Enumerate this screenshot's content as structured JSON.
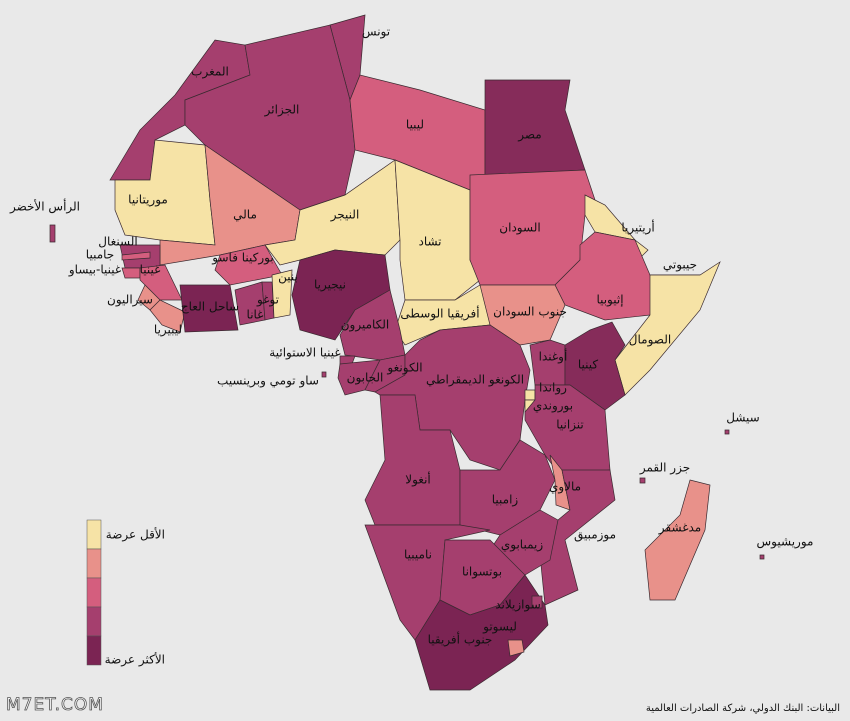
{
  "title": null,
  "countries": [
    {
      "name": "تونس",
      "color": "#a53f6e"
    },
    {
      "name": "المغرب",
      "color": "#a53f6e"
    },
    {
      "name": "الجزائر",
      "color": "#a53f6e"
    },
    {
      "name": "ليبيا",
      "color": "#d45e7e"
    },
    {
      "name": "مصر",
      "color": "#862c5a"
    },
    {
      "name": "موريتانيا",
      "color": "#f6e3a6"
    },
    {
      "name": "مالي",
      "color": "#e8918a"
    },
    {
      "name": "النيجر",
      "color": "#f6e3a6"
    },
    {
      "name": "تشاد",
      "color": "#f6e3a6"
    },
    {
      "name": "السودان",
      "color": "#d45e7e"
    },
    {
      "name": "أريتيريا",
      "color": "#f6e3a6"
    },
    {
      "name": "جيبوتي",
      "color": "#f6e3a6"
    },
    {
      "name": "إثيوبيا",
      "color": "#d45e7e"
    },
    {
      "name": "الصومال",
      "color": "#f6e3a6"
    },
    {
      "name": "جنوب السودان",
      "color": "#e8918a"
    },
    {
      "name": "أفريقيا الوسطى",
      "color": "#f6e3a6"
    },
    {
      "name": "نيجيريا",
      "color": "#7b2453"
    },
    {
      "name": "الكاميرون",
      "color": "#a53f6e"
    },
    {
      "name": "السنغال",
      "color": "#a53f6e"
    },
    {
      "name": "جامبيا",
      "color": "#d45e7e"
    },
    {
      "name": "غينيا-بيساو",
      "color": "#d45e7e"
    },
    {
      "name": "غينيا",
      "color": "#d45e7e"
    },
    {
      "name": "سيراليون",
      "color": "#e8918a"
    },
    {
      "name": "ليبيريا",
      "color": "#e8918a"
    },
    {
      "name": "ساحل العاج",
      "color": "#7b2453"
    },
    {
      "name": "بوركينا فاسو",
      "color": "#d45e7e"
    },
    {
      "name": "غانا",
      "color": "#a53f6e"
    },
    {
      "name": "توغو",
      "color": "#a53f6e"
    },
    {
      "name": "بنين",
      "color": "#f6e3a6"
    },
    {
      "name": "غينيا الاستوائية",
      "color": "#a53f6e"
    },
    {
      "name": "الجابون",
      "color": "#a53f6e"
    },
    {
      "name": "الكونغو",
      "color": "#a53f6e"
    },
    {
      "name": "ساو تومي وبرينسيب",
      "color": "#a53f6e"
    },
    {
      "name": "الكونغو الديمقراطي",
      "color": "#a53f6e"
    },
    {
      "name": "أوغندا",
      "color": "#a53f6e"
    },
    {
      "name": "كينيا",
      "color": "#862c5a"
    },
    {
      "name": "رواندا",
      "color": "#f6e3a6"
    },
    {
      "name": "بوروندي",
      "color": "#f6e3a6"
    },
    {
      "name": "تنزانيا",
      "color": "#a53f6e"
    },
    {
      "name": "أنغولا",
      "color": "#a53f6e"
    },
    {
      "name": "زامبيا",
      "color": "#a53f6e"
    },
    {
      "name": "مالاوي",
      "color": "#e8918a"
    },
    {
      "name": "موزمبيق",
      "color": "#a53f6e"
    },
    {
      "name": "زيمبابوي",
      "color": "#a53f6e"
    },
    {
      "name": "ناميبيا",
      "color": "#a53f6e"
    },
    {
      "name": "بوتسوانا",
      "color": "#a53f6e"
    },
    {
      "name": "جنوب أفريقيا",
      "color": "#7b2453"
    },
    {
      "name": "سوازيلاند",
      "color": "#a53f6e"
    },
    {
      "name": "ليسوتو",
      "color": "#e8918a"
    },
    {
      "name": "مدغشقر",
      "color": "#e8918a"
    },
    {
      "name": "جزر القمر",
      "color": "#a53f6e"
    },
    {
      "name": "سيشل",
      "color": "#a53f6e"
    },
    {
      "name": "موريشيوس",
      "color": "#a53f6e"
    },
    {
      "name": "الرأس الأخضر",
      "color": "#a53f6e"
    }
  ],
  "legend": {
    "low_label": "الأقل عرضة",
    "high_label": "الأكثر عرضة",
    "colors": [
      "#f6e3a6",
      "#e8918a",
      "#d45e7e",
      "#a53f6e",
      "#7b2453"
    ]
  },
  "source": "البيانات: البنك الدولي، شركة الصادرات العالمية",
  "watermark": "M7ET.COM"
}
